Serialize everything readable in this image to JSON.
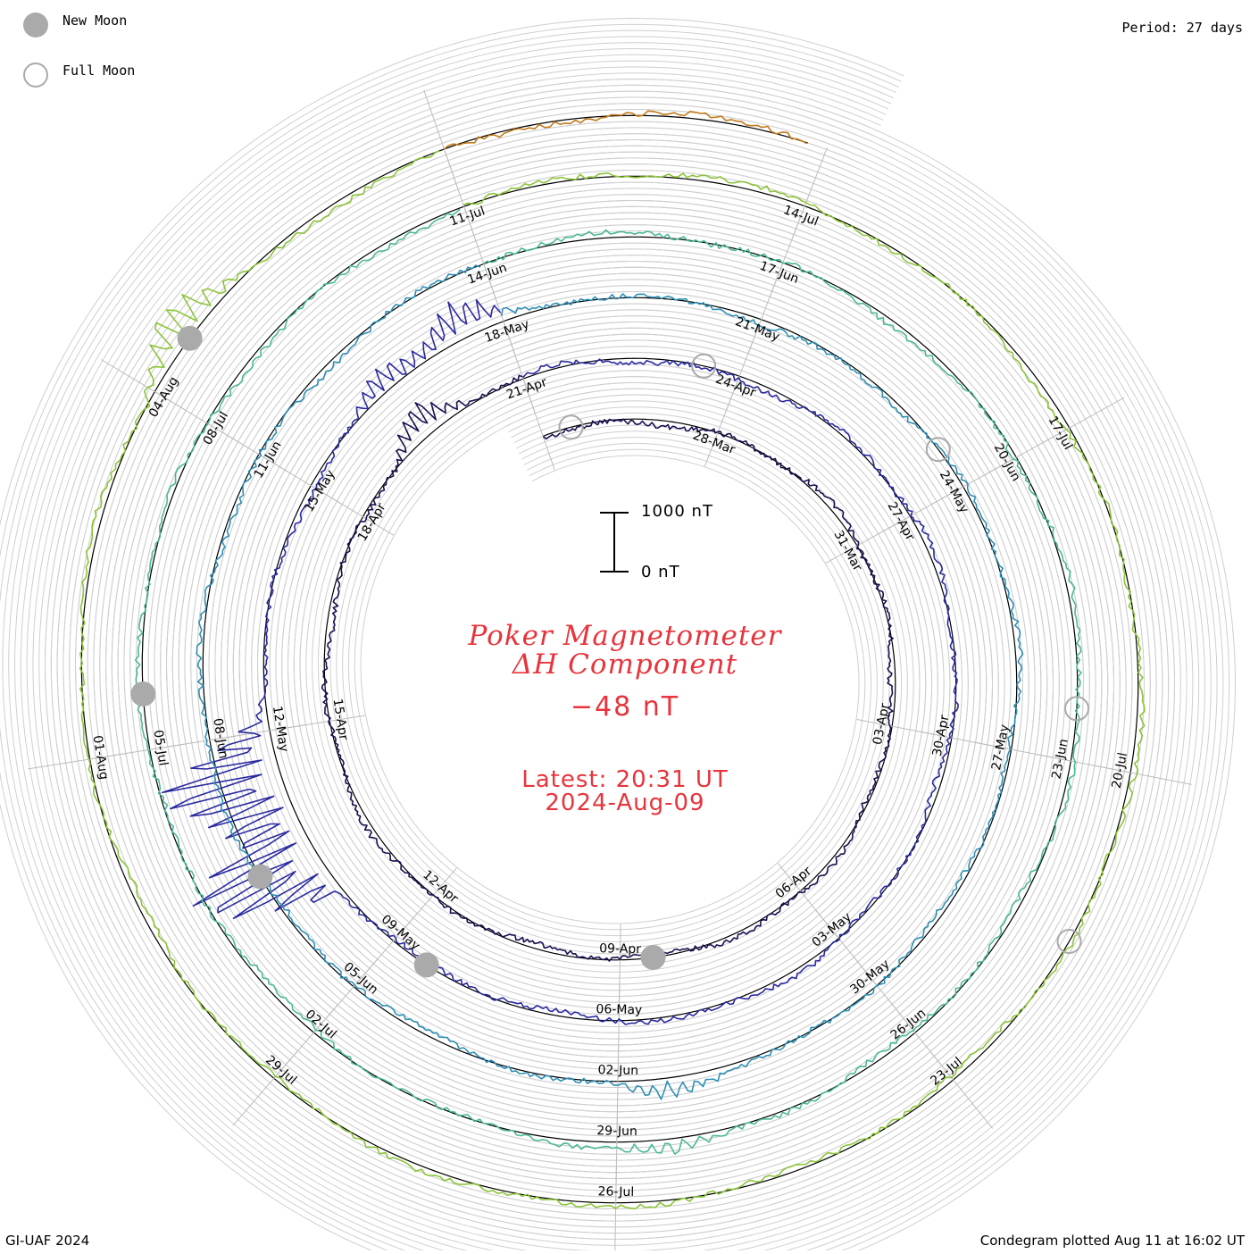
{
  "header": {
    "period_label": "Period: 27 days",
    "legend": [
      {
        "label": "New Moon",
        "style": "filled",
        "color": "#aaaaaa"
      },
      {
        "label": "Full Moon",
        "style": "hollow",
        "color": "#aaaaaa"
      }
    ]
  },
  "footer": {
    "credit": "GI-UAF 2024",
    "plotted": "Condegram plotted Aug 11 at 16:02 UT"
  },
  "center": {
    "title_line1": "Poker Magnetometer",
    "title_line2": "ΔH Component",
    "current_value": "−48 nT",
    "latest_line1": "Latest: 20:31 UT",
    "latest_line2": "2024-Aug-09",
    "scale_top_label": "1000 nT",
    "scale_bottom_label": "0 nT",
    "text_color": "#e8343c"
  },
  "chart_data": {
    "type": "condegram",
    "period_days": 27,
    "start_date": "2024-03-25",
    "end_date": "2024-08-09",
    "units": "nT",
    "scale_bar_nT": 1000,
    "current_value_nT": -48,
    "grid": true,
    "series_colors": [
      "#1a1050",
      "#2a2aa0",
      "#2f8fb4",
      "#4cb898",
      "#8cc43a",
      "#c07a1a",
      "#c03a10"
    ],
    "date_labels": [
      "28-Mar",
      "31-Mar",
      "03-Apr",
      "06-Apr",
      "09-Apr",
      "12-Apr",
      "15-Apr",
      "18-Apr",
      "21-Apr",
      "24-Apr",
      "27-Apr",
      "30-Apr",
      "03-May",
      "06-May",
      "09-May",
      "12-May",
      "15-May",
      "18-May",
      "21-May",
      "24-May",
      "27-May",
      "30-May",
      "02-Jun",
      "05-Jun",
      "08-Jun",
      "11-Jun",
      "14-Jun",
      "17-Jun",
      "20-Jun",
      "23-Jun",
      "26-Jun",
      "29-Jun",
      "02-Jul",
      "05-Jul",
      "08-Jul",
      "11-Jul",
      "14-Jul",
      "17-Jul",
      "20-Jul",
      "23-Jul",
      "26-Jul",
      "29-Jul",
      "01-Aug",
      "04-Aug"
    ],
    "new_moons": [
      "2024-04-08",
      "2024-05-08",
      "2024-06-06",
      "2024-07-05",
      "2024-08-04"
    ],
    "full_moons": [
      "2024-03-25",
      "2024-04-23",
      "2024-05-23",
      "2024-06-22",
      "2024-07-21"
    ],
    "events": [
      {
        "date": "2024-04-19",
        "delta_nT": -500
      },
      {
        "date": "2024-05-10",
        "delta_nT": -2300
      },
      {
        "date": "2024-05-11",
        "delta_nT": -2000
      },
      {
        "date": "2024-05-16",
        "delta_nT": -450
      },
      {
        "date": "2024-05-17",
        "delta_nT": -600
      },
      {
        "date": "2024-06-01",
        "delta_nT": -300
      },
      {
        "date": "2024-06-28",
        "delta_nT": -250
      },
      {
        "date": "2024-08-04",
        "delta_nT": -650
      }
    ]
  }
}
